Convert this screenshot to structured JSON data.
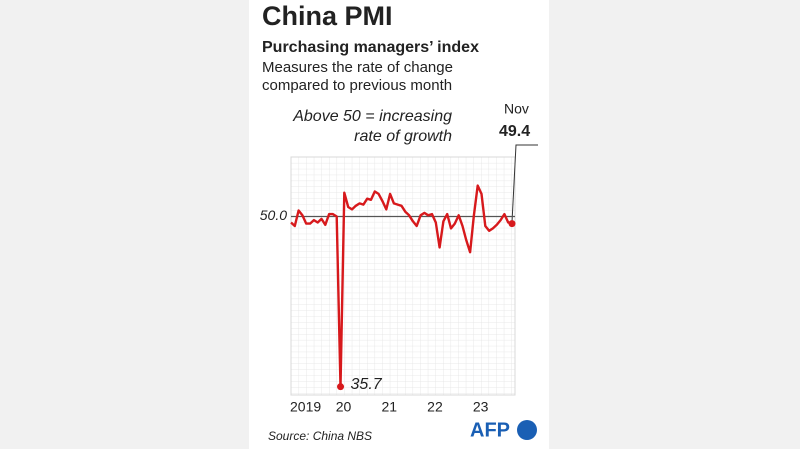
{
  "chart_data": {
    "type": "line",
    "title": "China PMI",
    "subtitle": "Purchasing managers’ index",
    "description": [
      "Measures the rate of change",
      "compared to previous month"
    ],
    "note": [
      "Above 50 = increasing",
      "rate of growth"
    ],
    "last_label": "Nov",
    "source": "Source: China NBS",
    "logo": "AFP",
    "color": "#d7191c",
    "categories": [
      "2019",
      null,
      null,
      null,
      null,
      null,
      null,
      null,
      null,
      null,
      null,
      null,
      "20",
      null,
      null,
      null,
      null,
      null,
      null,
      null,
      null,
      null,
      null,
      null,
      "21",
      null,
      null,
      null,
      null,
      null,
      null,
      null,
      null,
      null,
      null,
      null,
      "22",
      null,
      null,
      null,
      null,
      null,
      null,
      null,
      null,
      null,
      null,
      null,
      "23",
      null,
      null,
      null,
      null,
      null,
      null,
      null,
      null,
      null,
      null
    ],
    "values": [
      49.5,
      49.2,
      50.5,
      50.1,
      49.4,
      49.4,
      49.7,
      49.5,
      49.8,
      49.3,
      50.2,
      50.2,
      50.0,
      35.7,
      52.0,
      50.8,
      50.6,
      50.9,
      51.1,
      51.0,
      51.5,
      51.4,
      52.1,
      51.9,
      51.3,
      50.6,
      51.9,
      51.1,
      51.0,
      50.9,
      50.4,
      50.1,
      49.6,
      49.2,
      50.1,
      50.3,
      50.1,
      50.2,
      49.5,
      47.4,
      49.6,
      50.2,
      49.0,
      49.4,
      50.1,
      49.2,
      48.0,
      47.0,
      50.1,
      52.6,
      51.9,
      49.2,
      48.8,
      49.0,
      49.3,
      49.7,
      50.2,
      49.5,
      49.4
    ],
    "ylim": [
      35,
      55
    ],
    "yticks": [
      {
        "value": 50,
        "label": "50.0"
      }
    ],
    "grid": true
  }
}
